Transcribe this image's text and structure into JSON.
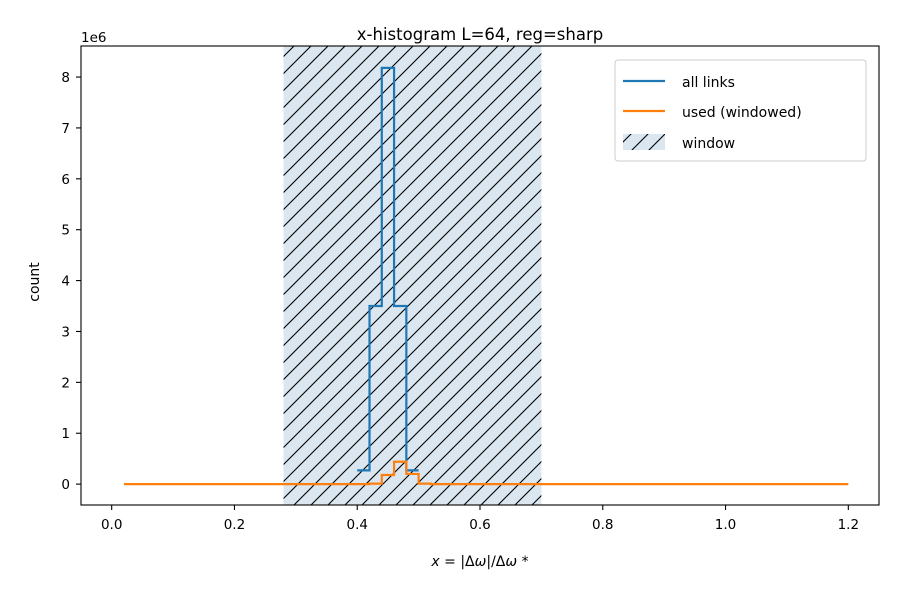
{
  "chart_data": {
    "type": "line",
    "title": "x-histogram L=64, reg=sharp",
    "xlabel_parts": [
      "x",
      " = |Δ",
      "ω",
      "|/Δ",
      "ω",
      " *"
    ],
    "ylabel": "count",
    "y_offset_text": "1e6",
    "xlim": [
      -0.05,
      1.25
    ],
    "ylim": [
      -0.41,
      8.61
    ],
    "x_ticks": [
      0.0,
      0.2,
      0.4,
      0.6,
      0.8,
      1.0,
      1.2
    ],
    "x_tick_labels": [
      "0.0",
      "0.2",
      "0.4",
      "0.6",
      "0.8",
      "1.0",
      "1.2"
    ],
    "y_ticks": [
      0,
      1,
      2,
      3,
      4,
      5,
      6,
      7,
      8
    ],
    "y_tick_labels": [
      "0",
      "1",
      "2",
      "3",
      "4",
      "5",
      "6",
      "7",
      "8"
    ],
    "window": {
      "name": "window",
      "x_start": 0.28,
      "x_end": 0.7,
      "color": "#dbe7f0"
    },
    "bin_edges": [
      0.0,
      0.02,
      0.04,
      0.06,
      0.08,
      0.1,
      0.12,
      0.14,
      0.16,
      0.18,
      0.2,
      0.22,
      0.24,
      0.26,
      0.28,
      0.3,
      0.32,
      0.34,
      0.36,
      0.38,
      0.4,
      0.42,
      0.44,
      0.46,
      0.48,
      0.5,
      0.52,
      0.54,
      0.56,
      0.58,
      0.6,
      0.62,
      0.64,
      0.66,
      0.68,
      0.7,
      0.72,
      0.74,
      0.76,
      0.78,
      0.8,
      0.82,
      0.84,
      0.86,
      0.88,
      0.9,
      0.92,
      0.94,
      0.96,
      0.98,
      1.0,
      1.02,
      1.04,
      1.06,
      1.08,
      1.1,
      1.12,
      1.14,
      1.16,
      1.18,
      1.2
    ],
    "series": [
      {
        "name": "all links",
        "color": "#1f77b4",
        "x_start": 0.4,
        "x_end": 0.5,
        "values": [
          0.27,
          3.5,
          8.18,
          3.5,
          0.27
        ]
      },
      {
        "name": "used (windowed)",
        "color": "#ff7f0e",
        "x_start": 0.01,
        "x_end": 1.19,
        "values": [
          0,
          0,
          0,
          0,
          0,
          0,
          0,
          0,
          0,
          0,
          0,
          0,
          0,
          0,
          0,
          0,
          0,
          0,
          0,
          0,
          0.01,
          0.18,
          0.44,
          0.2,
          0.01,
          0,
          0,
          0,
          0,
          0,
          0,
          0,
          0,
          0,
          0,
          0,
          0,
          0,
          0,
          0,
          0,
          0,
          0,
          0,
          0,
          0,
          0,
          0,
          0,
          0,
          0,
          0,
          0,
          0,
          0,
          0,
          0,
          0,
          0,
          0
        ]
      }
    ],
    "legend_position": "upper right",
    "grid": false
  }
}
